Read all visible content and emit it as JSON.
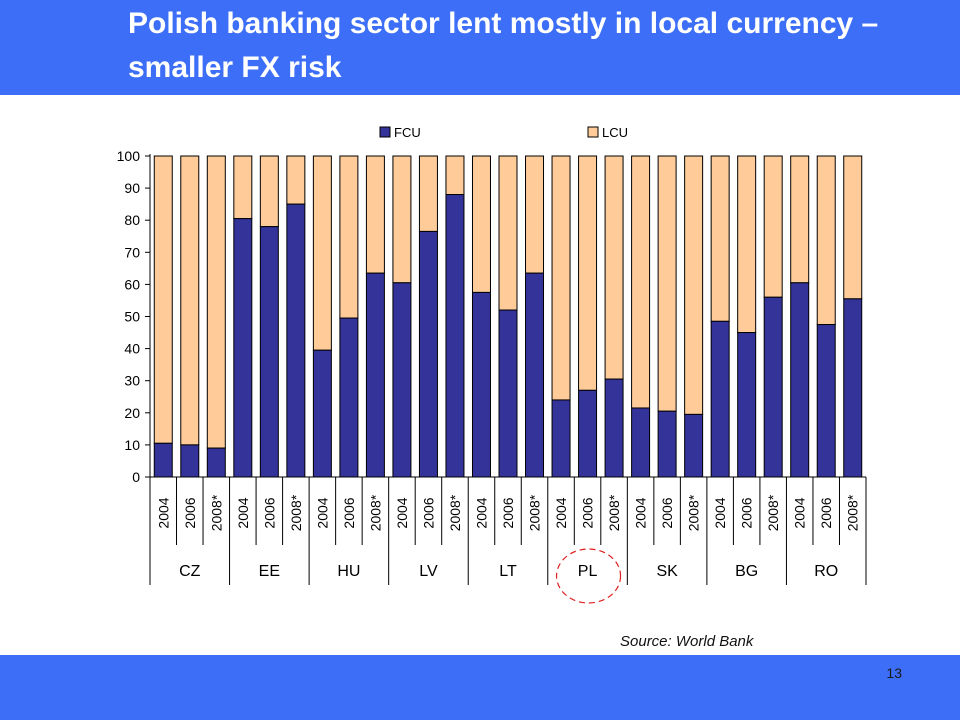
{
  "slide": {
    "title": "Polish banking sector lent mostly in local currency – smaller FX risk",
    "source": "Source: World Bank",
    "page_number": "13"
  },
  "colors": {
    "header_bg": "#3d6ef7",
    "fcu": "#333399",
    "lcu": "#ffcc99",
    "highlight_circle": "#e02020"
  },
  "chart_data": {
    "type": "bar",
    "stacked": true,
    "legend_position": "top",
    "ylim": [
      0,
      100
    ],
    "yticks": [
      0,
      10,
      20,
      30,
      40,
      50,
      60,
      70,
      80,
      90,
      100
    ],
    "groups": [
      {
        "label": "CZ",
        "years": [
          "2004",
          "2006",
          "2008*"
        ]
      },
      {
        "label": "EE",
        "years": [
          "2004",
          "2006",
          "2008*"
        ]
      },
      {
        "label": "HU",
        "years": [
          "2004",
          "2006",
          "2008*"
        ]
      },
      {
        "label": "LV",
        "years": [
          "2004",
          "2006",
          "2008*"
        ]
      },
      {
        "label": "LT",
        "years": [
          "2004",
          "2006",
          "2008*"
        ]
      },
      {
        "label": "PL",
        "years": [
          "2004",
          "2006",
          "2008*"
        ],
        "highlighted": true
      },
      {
        "label": "SK",
        "years": [
          "2004",
          "2006",
          "2008*"
        ]
      },
      {
        "label": "BG",
        "years": [
          "2004",
          "2006",
          "2008*"
        ]
      },
      {
        "label": "RO",
        "years": [
          "2004",
          "2006",
          "2008*"
        ]
      }
    ],
    "series": [
      {
        "name": "FCU",
        "values": [
          10.5,
          10,
          9,
          80.5,
          78,
          85,
          39.5,
          49.5,
          63.5,
          60.5,
          76.5,
          88,
          57.5,
          52,
          63.5,
          24,
          27,
          30.5,
          21.5,
          20.5,
          19.5,
          48.5,
          45,
          56,
          60.5,
          47.5,
          55.5
        ]
      },
      {
        "name": "LCU",
        "values": [
          89.5,
          90,
          91,
          19.5,
          22,
          15,
          60.5,
          50.5,
          36.5,
          39.5,
          23.5,
          12,
          42.5,
          48,
          36.5,
          76,
          73,
          69.5,
          78.5,
          79.5,
          80.5,
          51.5,
          55,
          44,
          39.5,
          52.5,
          44.5
        ]
      }
    ]
  }
}
